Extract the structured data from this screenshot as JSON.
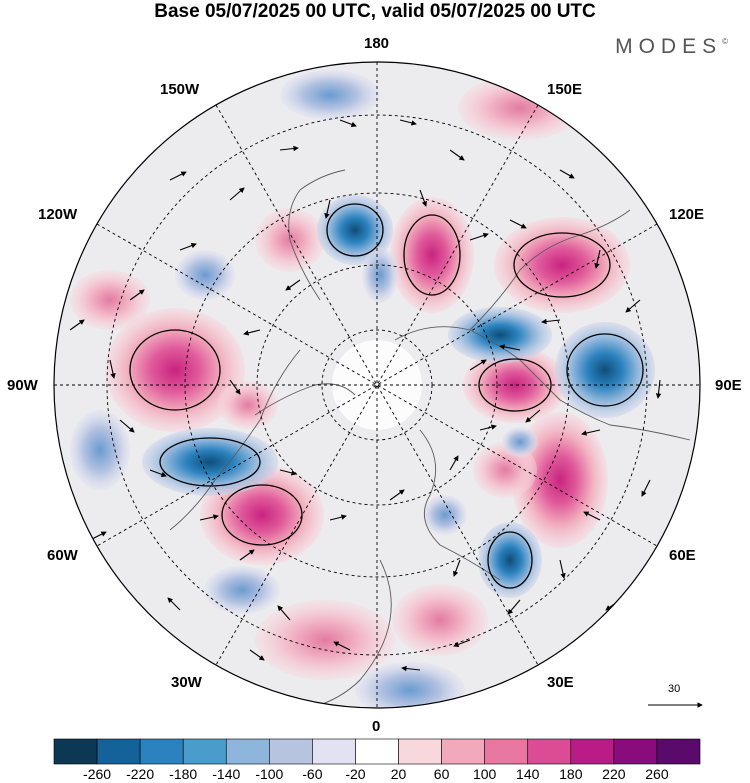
{
  "title": "Base 05/07/2025 00 UTC, valid 05/07/2025 00 UTC",
  "brand": {
    "name": "MODES",
    "mark": "©"
  },
  "longitude_labels": {
    "lon_180": "180",
    "lon_150e": "150E",
    "lon_120e": "120E",
    "lon_90e": "90E",
    "lon_60e": "60E",
    "lon_30e": "30E",
    "lon_0": "0",
    "lon_30w": "30W",
    "lon_60w": "60W",
    "lon_90w": "90W",
    "lon_120w": "120W",
    "lon_150w": "150W"
  },
  "wind_scale": {
    "label": "30"
  },
  "colorbar": {
    "labels": [
      "-260",
      "-220",
      "-180",
      "-140",
      "-100",
      "-60",
      "-20",
      "20",
      "60",
      "100",
      "140",
      "180",
      "220",
      "260"
    ],
    "colors": [
      "#0c3855",
      "#15619a",
      "#2b82bf",
      "#4a9ccd",
      "#8eb5db",
      "#b7c4e0",
      "#e2e2f2",
      "#ffffff",
      "#f8d7dd",
      "#f1a9bb",
      "#e878a2",
      "#dc4b96",
      "#b91c87",
      "#8a0c7c",
      "#5a0a6a"
    ]
  },
  "map_colors": {
    "background_field": "#ececef",
    "coastline": "#5a5a5a",
    "graticule": "#000000"
  }
}
